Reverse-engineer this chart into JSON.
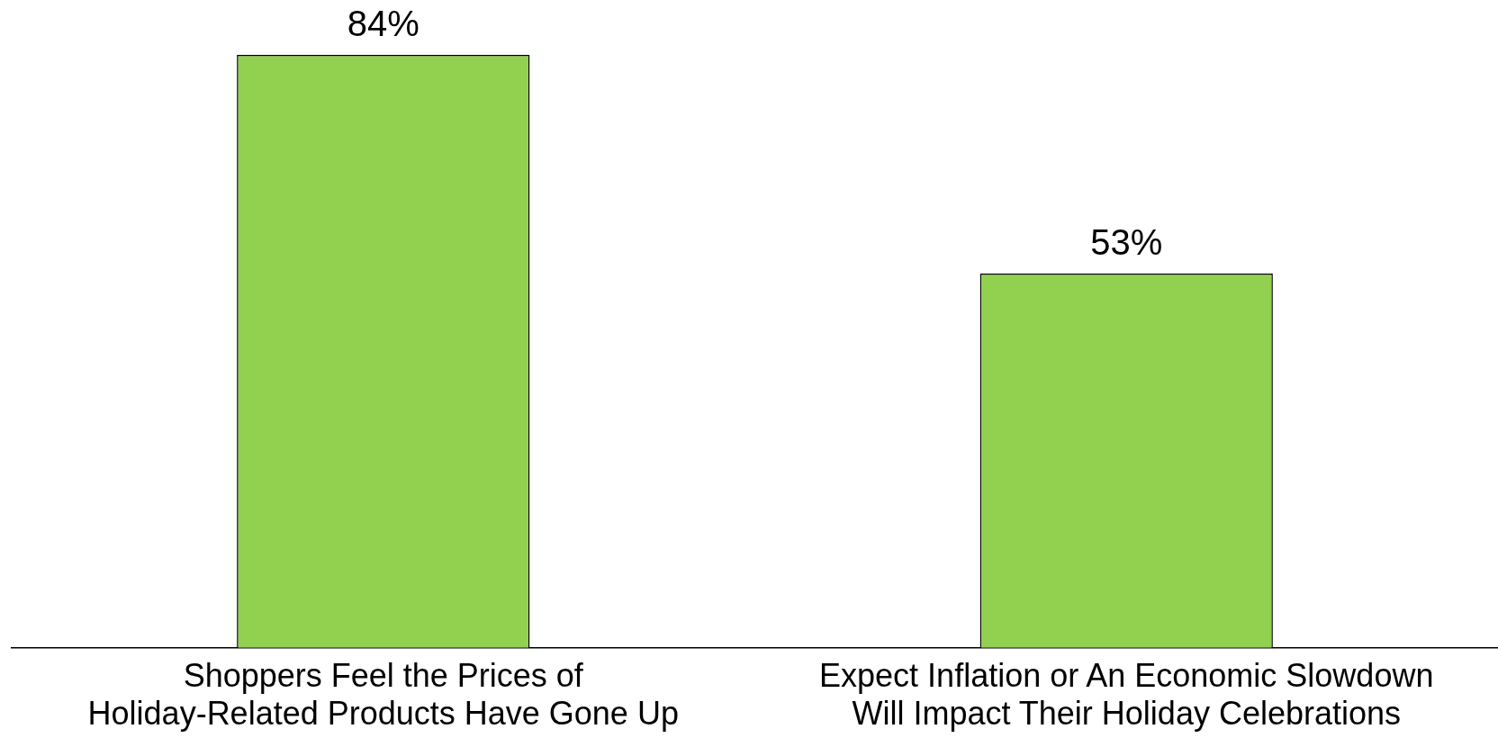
{
  "chart_data": {
    "type": "bar",
    "categories": [
      "Shoppers Feel the Prices of Holiday-Related Products Have Gone Up",
      "Expect Inflation or An Economic Slowdown Will Impact Their Holiday Celebrations"
    ],
    "values": [
      84,
      53
    ],
    "color": "#92d050",
    "value_labels": [
      "84%",
      "53%"
    ]
  }
}
